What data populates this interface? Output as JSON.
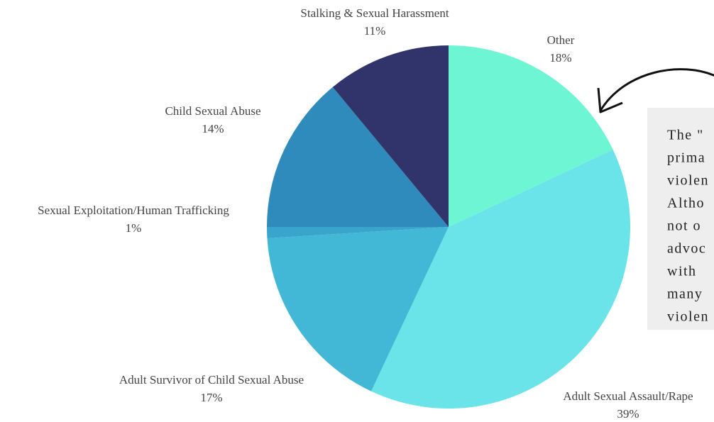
{
  "chart_data": {
    "type": "pie",
    "categories": [
      "Other",
      "Adult Sexual Assault/Rape",
      "Adult Survivor of Child Sexual Abuse",
      "Sexual Exploitation/Human Trafficking",
      "Child Sexual Abuse",
      "Stalking & Sexual Harassment"
    ],
    "values": [
      18,
      39,
      17,
      1,
      14,
      11
    ],
    "value_labels": [
      "18%",
      "39%",
      "17%",
      "1%",
      "14%",
      "11%"
    ],
    "colors": [
      "#6ef5d4",
      "#6ae4e8",
      "#42b8d6",
      "#3aa5cc",
      "#2e8bbc",
      "#31336b"
    ]
  },
  "annotation": {
    "lines": [
      "The \"",
      "prima",
      "violen",
      "Altho",
      "not o",
      "advoc",
      "with",
      "many",
      "violen"
    ]
  }
}
